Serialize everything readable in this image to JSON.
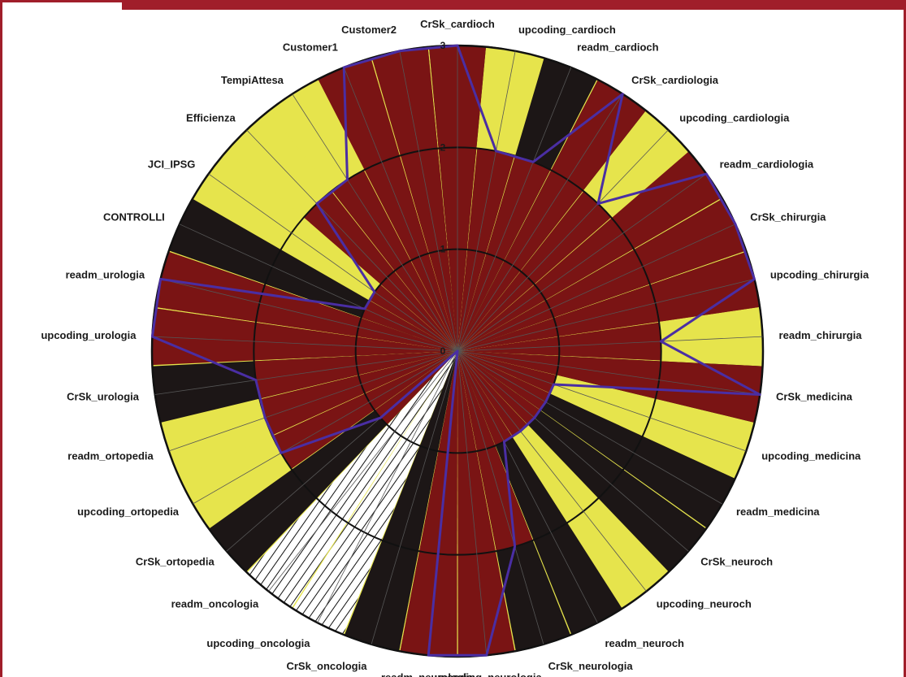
{
  "chart_data": {
    "type": "radar-wedge",
    "title": "",
    "range": [
      0,
      3
    ],
    "tick_labels": [
      "0",
      "1",
      "2",
      "3"
    ],
    "colors": {
      "black": "#1c1616",
      "yellow": "#e6e44c",
      "red": "#7a1414",
      "hatch": "#ffffff",
      "outline": "#4a2ea3"
    },
    "categories": [
      {
        "label": "CrSk_cardioch",
        "fill": "black",
        "outer": 3.0,
        "value": 3.0
      },
      {
        "label": "upcoding_cardioch",
        "fill": "yellow",
        "outer": 3.0,
        "value": 2.0
      },
      {
        "label": "readm_cardioch",
        "fill": "black",
        "outer": 3.0,
        "value": 2.0
      },
      {
        "label": "CrSk_cardiologia",
        "fill": "black",
        "outer": 3.0,
        "value": 3.0
      },
      {
        "label": "upcoding_cardiologia",
        "fill": "yellow",
        "outer": 3.0,
        "value": 2.0
      },
      {
        "label": "readm_cardiologia",
        "fill": "yellow",
        "outer": 3.0,
        "value": 3.0
      },
      {
        "label": "CrSk_chirurgia",
        "fill": "black",
        "outer": 3.0,
        "value": 3.0
      },
      {
        "label": "upcoding_chirurgia",
        "fill": "red",
        "outer": 3.0,
        "value": 3.0
      },
      {
        "label": "readm_chirurgia",
        "fill": "yellow",
        "outer": 3.0,
        "value": 2.0
      },
      {
        "label": "CrSk_medicina",
        "fill": "black",
        "outer": 3.0,
        "value": 3.0
      },
      {
        "label": "upcoding_medicina",
        "fill": "yellow",
        "outer": 3.0,
        "value": 1.0
      },
      {
        "label": "readm_medicina",
        "fill": "black",
        "outer": 3.0,
        "value": 1.0
      },
      {
        "label": "CrSk_neuroch",
        "fill": "black",
        "outer": 3.0,
        "value": 1.0
      },
      {
        "label": "upcoding_neuroch",
        "fill": "yellow",
        "outer": 3.0,
        "value": 1.0
      },
      {
        "label": "readm_neuroch",
        "fill": "black",
        "outer": 3.0,
        "value": 1.0
      },
      {
        "label": "CrSk_neurologia",
        "fill": "black",
        "outer": 3.0,
        "value": 2.0
      },
      {
        "label": "upcoding_neurologia",
        "fill": "yellow",
        "outer": 3.0,
        "value": 3.0
      },
      {
        "label": "readm_neurologia",
        "fill": "red",
        "outer": 3.0,
        "value": 3.0
      },
      {
        "label": "CrSk_oncologia",
        "fill": "black",
        "outer": 3.0,
        "value": 0.0
      },
      {
        "label": "upcoding_oncologia",
        "fill": "hatch",
        "outer": 3.0,
        "value": 0.0
      },
      {
        "label": "readm_oncologia",
        "fill": "hatch",
        "outer": 3.0,
        "value": 0.0
      },
      {
        "label": "CrSk_ortopedia",
        "fill": "black",
        "outer": 3.0,
        "value": 1.0
      },
      {
        "label": "upcoding_ortopedia",
        "fill": "yellow",
        "outer": 3.0,
        "value": 2.0
      },
      {
        "label": "readm_ortopedia",
        "fill": "yellow",
        "outer": 3.0,
        "value": 2.0
      },
      {
        "label": "CrSk_urologia",
        "fill": "black",
        "outer": 3.0,
        "value": 2.0
      },
      {
        "label": "upcoding_urologia",
        "fill": "yellow",
        "outer": 3.0,
        "value": 3.0
      },
      {
        "label": "readm_urologia",
        "fill": "red",
        "outer": 3.0,
        "value": 3.0
      },
      {
        "label": "CONTROLLI",
        "fill": "black",
        "outer": 3.0,
        "value": 1.0
      },
      {
        "label": "JCI_IPSG",
        "fill": "yellow",
        "outer": 3.0,
        "value": 1.0
      },
      {
        "label": "Efficienza",
        "fill": "yellow",
        "outer": 3.0,
        "value": 2.0
      },
      {
        "label": "TempiAttesa",
        "fill": "yellow",
        "outer": 3.0,
        "value": 2.0
      },
      {
        "label": "Customer1",
        "fill": "yellow",
        "outer": 3.0,
        "value": 3.0
      },
      {
        "label": "Customer2",
        "fill": "red",
        "outer": 3.0,
        "value": 3.0
      }
    ]
  }
}
